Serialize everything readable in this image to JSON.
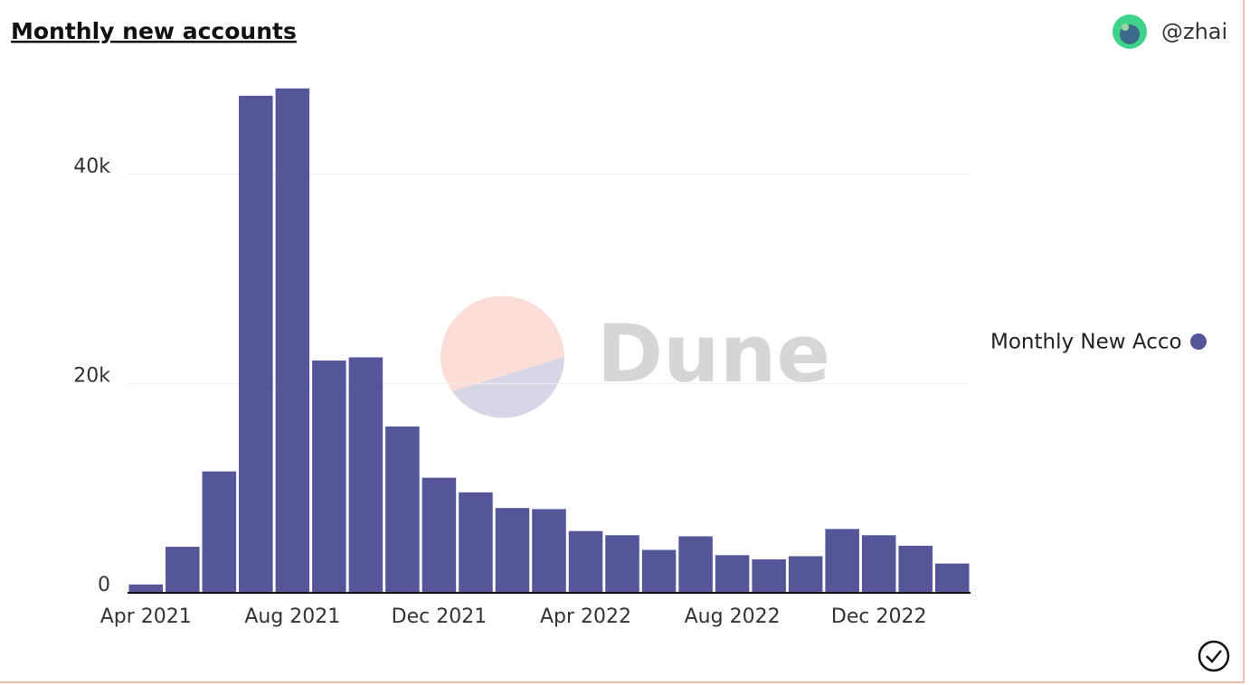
{
  "chart_data": {
    "type": "bar",
    "title": "Monthly new accounts",
    "author": "@zhai",
    "watermark": "Dune",
    "categories": [
      "Apr 2021",
      null,
      null,
      null,
      "Aug 2021",
      null,
      null,
      null,
      "Dec 2021",
      null,
      null,
      null,
      "Apr 2022",
      null,
      null,
      null,
      "Aug 2022",
      null,
      null,
      null,
      "Dec 2022",
      null,
      null
    ],
    "series": [
      {
        "name": "Monthly New Accounts",
        "color": "#55559a",
        "values": [
          800,
          4400,
          11600,
          47500,
          48200,
          22200,
          22500,
          15900,
          11000,
          9600,
          8100,
          8000,
          5900,
          5500,
          4100,
          5400,
          3600,
          3200,
          3500,
          6100,
          5500,
          4500,
          2800
        ]
      }
    ],
    "ylim": [
      0,
      50000
    ],
    "yticks": [
      0,
      {
        "value": 20000,
        "label": "20k"
      },
      {
        "value": 40000,
        "label": "40k"
      }
    ],
    "grid": true
  }
}
